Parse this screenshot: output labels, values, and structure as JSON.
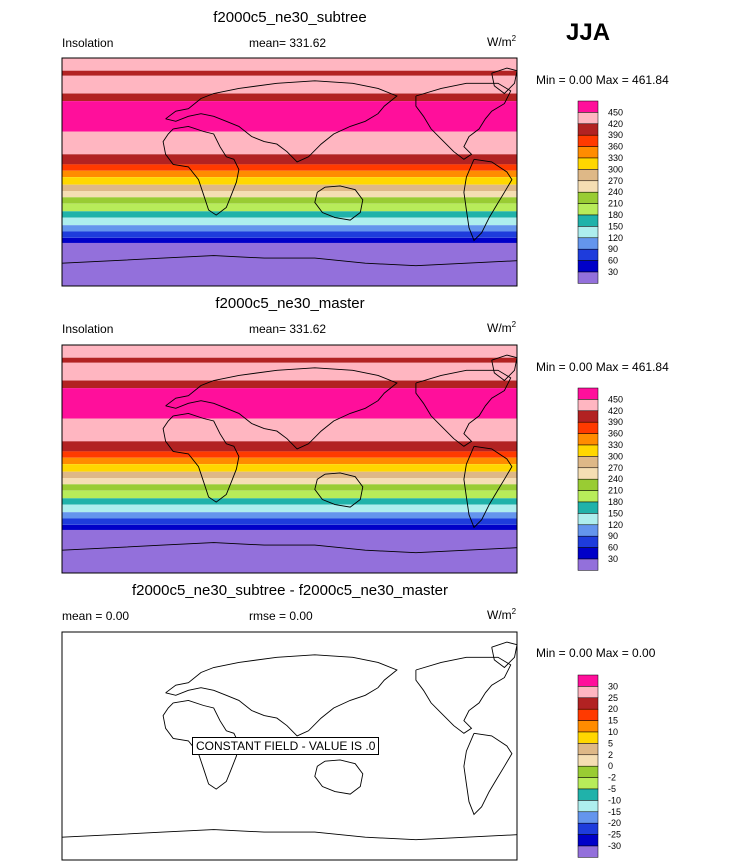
{
  "season": "JJA",
  "panels": [
    {
      "title": "f2000c5_ne30_subtree",
      "left_label": "Insolation",
      "center_label": "mean= 331.62",
      "units_base": "W/m",
      "units_exp": "2",
      "minmax": "Min =   0.00 Max = 461.84"
    },
    {
      "title": "f2000c5_ne30_master",
      "left_label": "Insolation",
      "center_label": "mean= 331.62",
      "units_base": "W/m",
      "units_exp": "2",
      "minmax": "Min =   0.00 Max = 461.84"
    },
    {
      "title": "f2000c5_ne30_subtree - f2000c5_ne30_master",
      "left_label": "mean =   0.00",
      "center_label": "rmse =   0.00",
      "units_base": "W/m",
      "units_exp": "2",
      "minmax": "Min =   0.00 Max =   0.00",
      "constant_note": "CONSTANT FIELD - VALUE IS .0"
    }
  ],
  "chart_data": [
    {
      "type": "heatmap",
      "title": "f2000c5_ne30_subtree",
      "variable": "Insolation",
      "season": "JJA",
      "units": "W/m2",
      "mean": 331.62,
      "min": 0.0,
      "max": 461.84,
      "colorbar_levels": [
        450,
        420,
        390,
        360,
        330,
        300,
        270,
        240,
        210,
        180,
        150,
        120,
        90,
        60,
        30
      ],
      "colorbar_colors": [
        "#ff0f9b",
        "#ffb6c1",
        "#b22222",
        "#ff3a00",
        "#ff8c00",
        "#ffd700",
        "#deb887",
        "#f5deb3",
        "#99cc33",
        "#b8ec5a",
        "#20b2aa",
        "#aeeeee",
        "#6495ed",
        "#1e3cdc",
        "#0000c8",
        "#9370db"
      ],
      "latitude_bands": [
        {
          "lat_from": 90,
          "lat_to": 80,
          "value": 435
        },
        {
          "lat_from": 80,
          "lat_to": 76,
          "value": 405
        },
        {
          "lat_from": 76,
          "lat_to": 62,
          "value": 435
        },
        {
          "lat_from": 62,
          "lat_to": 56,
          "value": 405
        },
        {
          "lat_from": 56,
          "lat_to": 32,
          "value": 460
        },
        {
          "lat_from": 32,
          "lat_to": 14,
          "value": 440
        },
        {
          "lat_from": 14,
          "lat_to": 6,
          "value": 405
        },
        {
          "lat_from": 6,
          "lat_to": 1,
          "value": 375
        },
        {
          "lat_from": 1,
          "lat_to": -4,
          "value": 345
        },
        {
          "lat_from": -4,
          "lat_to": -10,
          "value": 315
        },
        {
          "lat_from": -10,
          "lat_to": -15,
          "value": 285
        },
        {
          "lat_from": -15,
          "lat_to": -20,
          "value": 255
        },
        {
          "lat_from": -20,
          "lat_to": -25,
          "value": 225
        },
        {
          "lat_from": -25,
          "lat_to": -31,
          "value": 195
        },
        {
          "lat_from": -31,
          "lat_to": -36,
          "value": 165
        },
        {
          "lat_from": -36,
          "lat_to": -42,
          "value": 135
        },
        {
          "lat_from": -42,
          "lat_to": -47,
          "value": 105
        },
        {
          "lat_from": -47,
          "lat_to": -52,
          "value": 75
        },
        {
          "lat_from": -52,
          "lat_to": -56,
          "value": 45
        },
        {
          "lat_from": -56,
          "lat_to": -90,
          "value": 10
        }
      ]
    },
    {
      "type": "heatmap",
      "title": "f2000c5_ne30_master",
      "variable": "Insolation",
      "season": "JJA",
      "units": "W/m2",
      "mean": 331.62,
      "min": 0.0,
      "max": 461.84,
      "colorbar_levels": [
        450,
        420,
        390,
        360,
        330,
        300,
        270,
        240,
        210,
        180,
        150,
        120,
        90,
        60,
        30
      ],
      "colorbar_colors": [
        "#ff0f9b",
        "#ffb6c1",
        "#b22222",
        "#ff3a00",
        "#ff8c00",
        "#ffd700",
        "#deb887",
        "#f5deb3",
        "#99cc33",
        "#b8ec5a",
        "#20b2aa",
        "#aeeeee",
        "#6495ed",
        "#1e3cdc",
        "#0000c8",
        "#9370db"
      ],
      "same_as_panel": 0
    },
    {
      "type": "heatmap",
      "title": "f2000c5_ne30_subtree - f2000c5_ne30_master",
      "season": "JJA",
      "units": "W/m2",
      "mean": 0.0,
      "rmse": 0.0,
      "min": 0.0,
      "max": 0.0,
      "constant_value": 0,
      "colorbar_levels": [
        30,
        25,
        20,
        15,
        10,
        5,
        2,
        0,
        -2,
        -5,
        -10,
        -15,
        -20,
        -25,
        -30
      ],
      "colorbar_colors": [
        "#ff0f9b",
        "#ffb6c1",
        "#b22222",
        "#ff3a00",
        "#ff8c00",
        "#ffd700",
        "#deb887",
        "#f5deb3",
        "#99cc33",
        "#b8ec5a",
        "#20b2aa",
        "#aeeeee",
        "#6495ed",
        "#1e3cdc",
        "#0000c8",
        "#9370db"
      ]
    }
  ]
}
